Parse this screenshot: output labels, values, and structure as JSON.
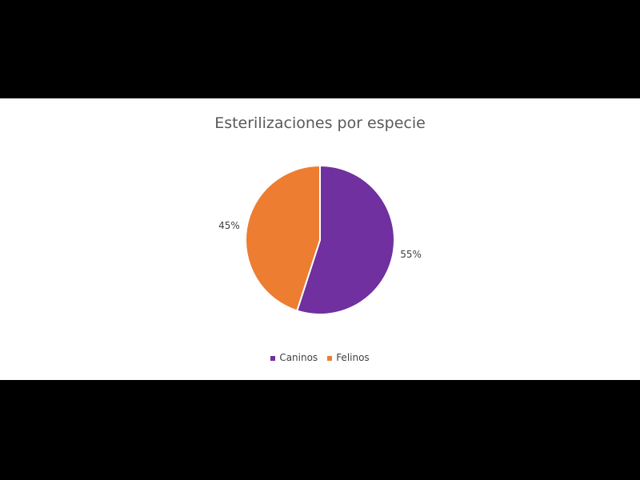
{
  "chart_data": {
    "type": "pie",
    "title": "Esterilizaciones por especie",
    "categories": [
      "Caninos",
      "Felinos"
    ],
    "values": [
      55,
      45
    ],
    "data_labels": [
      "55%",
      "45%"
    ],
    "colors": [
      "#7030A0",
      "#ED7D31"
    ],
    "legend_position": "bottom"
  }
}
